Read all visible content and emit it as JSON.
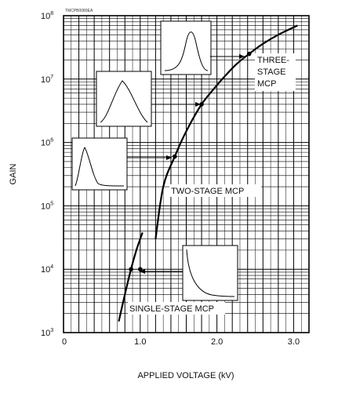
{
  "chart_data": {
    "type": "line",
    "code": "TMCPB0089EA",
    "xlabel": "APPLIED VOLTAGE (kV)",
    "ylabel": "GAIN",
    "xlim": [
      0,
      3.2
    ],
    "ylim_log10": [
      3,
      8
    ],
    "y_scale": "log",
    "grid": true,
    "x_ticks": [
      {
        "value": 0,
        "label": "0"
      },
      {
        "value": 1.0,
        "label": "1.0"
      },
      {
        "value": 2.0,
        "label": "2.0"
      },
      {
        "value": 3.0,
        "label": "3.0"
      }
    ],
    "y_ticks": [
      {
        "exp": 3,
        "base": "10",
        "power": "3"
      },
      {
        "exp": 4,
        "base": "10",
        "power": "4"
      },
      {
        "exp": 5,
        "base": "10",
        "power": "5"
      },
      {
        "exp": 6,
        "base": "10",
        "power": "6"
      },
      {
        "exp": 7,
        "base": "10",
        "power": "7"
      },
      {
        "exp": 8,
        "base": "10",
        "power": "8"
      }
    ],
    "series": [
      {
        "name": "SINGLE-STAGE MCP",
        "points": [
          [
            0.72,
            1500
          ],
          [
            0.8,
            4000
          ],
          [
            0.88,
            10000
          ],
          [
            0.95,
            20000
          ],
          [
            1.03,
            38000
          ]
        ],
        "marker": [
          0.88,
          10000
        ],
        "marker2": [
          1.0,
          10000
        ]
      },
      {
        "name": "TWO-STAGE MCP",
        "points": [
          [
            1.2,
            30000
          ],
          [
            1.3,
            200000
          ],
          [
            1.45,
            600000
          ],
          [
            1.6,
            1500000
          ],
          [
            1.8,
            4000000
          ],
          [
            2.0,
            8000000
          ],
          [
            2.1,
            11000000
          ]
        ],
        "marker": [
          1.45,
          600000
        ],
        "marker2": [
          1.8,
          4000000
        ]
      },
      {
        "name": "THREE-STAGE MCP",
        "points": [
          [
            2.1,
            11000000
          ],
          [
            2.25,
            17000000
          ],
          [
            2.42,
            25000000
          ],
          [
            2.6,
            36000000
          ],
          [
            2.8,
            50000000
          ],
          [
            3.05,
            70000000
          ]
        ],
        "marker": [
          2.42,
          25000000
        ]
      }
    ],
    "annotations": [
      {
        "lines": [
          "THREE-",
          "STAGE",
          "MCP"
        ]
      },
      {
        "lines": [
          "TWO-STAGE MCP"
        ]
      },
      {
        "lines": [
          "SINGLE-STAGE MCP"
        ]
      }
    ]
  }
}
